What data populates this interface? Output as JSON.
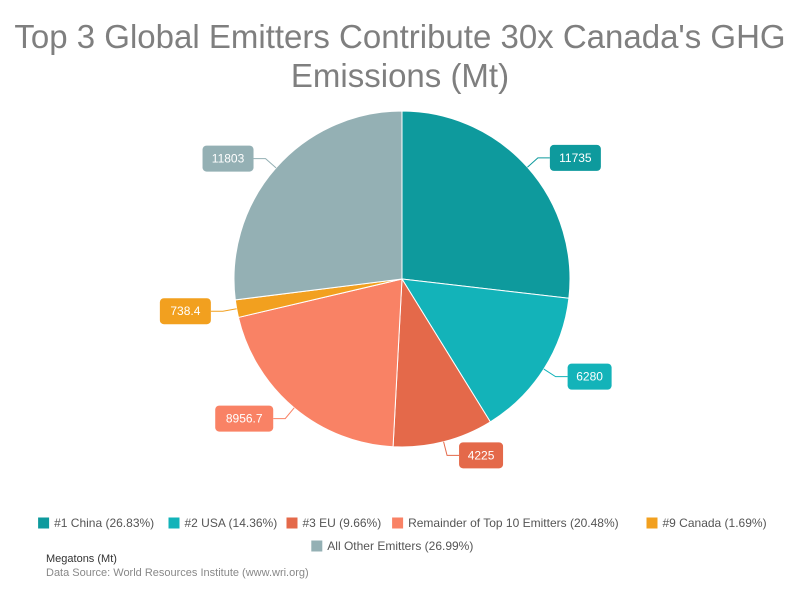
{
  "chart_data": {
    "type": "pie",
    "title_lines": [
      "Top 3 Global Emitters Contribute 30x Canada's GHG",
      "Emissions (Mt)"
    ],
    "series": [
      {
        "name": "#1 China (26.83%)",
        "label": "11735",
        "value": 11735,
        "color": "#0e9a9d"
      },
      {
        "name": "#2 USA (14.36%)",
        "label": "6280",
        "value": 6280,
        "color": "#13b3b9"
      },
      {
        "name": "#3 EU (9.66%)",
        "label": "4225",
        "value": 4225,
        "color": "#e4694a"
      },
      {
        "name": "Remainder of Top 10 Emitters (20.48%)",
        "label": "8956.7",
        "value": 8956.7,
        "color": "#f98265"
      },
      {
        "name": "#9 Canada (1.69%)",
        "label": "738.4",
        "value": 738.4,
        "color": "#f2a01f"
      },
      {
        "name": "All Other Emitters (26.99%)",
        "label": "11803",
        "value": 11803,
        "color": "#94b0b4"
      }
    ],
    "legend_placement": "bottom"
  },
  "footer": {
    "unit": "Megatons (Mt)",
    "source": "Data Source: World Resources Institute (www.wri.org)"
  }
}
